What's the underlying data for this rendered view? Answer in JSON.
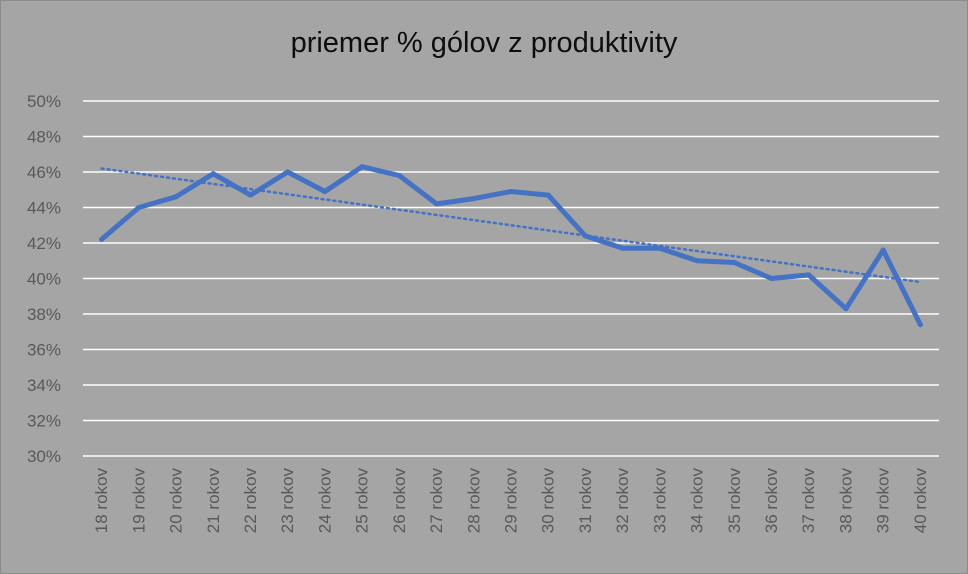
{
  "chart_data": {
    "type": "line",
    "title": "priemer % gólov z produktivity",
    "categories": [
      "18 rokov",
      "19 rokov",
      "20 rokov",
      "21 rokov",
      "22 rokov",
      "23 rokov",
      "24 rokov",
      "25 rokov",
      "26 rokov",
      "27 rokov",
      "28 rokov",
      "29 rokov",
      "30 rokov",
      "31 rokov",
      "32 rokov",
      "33 rokov",
      "34 rokov",
      "35 rokov",
      "36 rokov",
      "37 rokov",
      "38 rokov",
      "39 rokov",
      "40 rokov"
    ],
    "series": [
      {
        "values": [
          42.2,
          44.0,
          44.6,
          45.9,
          44.7,
          46.0,
          44.9,
          46.3,
          45.8,
          44.2,
          44.5,
          44.9,
          44.7,
          42.4,
          41.7,
          41.7,
          41.0,
          40.9,
          40.0,
          40.2,
          38.3,
          41.6,
          37.4
        ]
      }
    ],
    "trendline": {
      "type": "linear",
      "style": "dotted",
      "start": 46.2,
      "end": 39.8
    },
    "yticks": [
      "50%",
      "48%",
      "46%",
      "44%",
      "42%",
      "40%",
      "38%",
      "36%",
      "34%",
      "32%",
      "30%"
    ],
    "ylim": [
      30,
      50
    ],
    "ylabel": "",
    "xlabel": "",
    "grid": true,
    "legend": "none",
    "colors": {
      "line": "#4472c4",
      "trend": "#4472c4",
      "grid": "#ffffff",
      "background": "#a5a5a5",
      "tick_text": "#595959",
      "title": "#0d0d0d"
    }
  }
}
